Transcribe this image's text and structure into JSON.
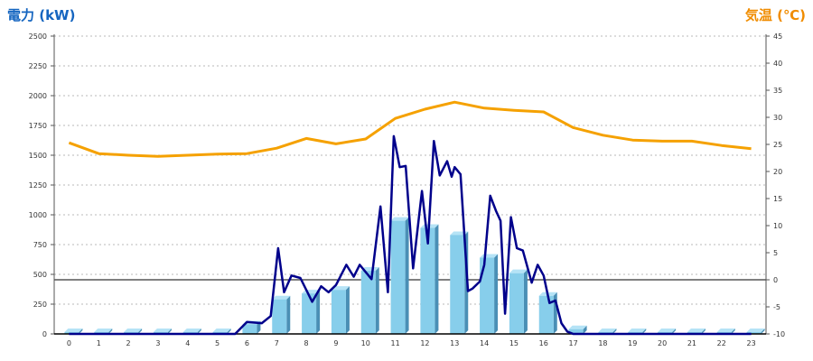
{
  "chart_data": {
    "type": "bar",
    "left_axis_title": "電力 (kW)",
    "right_axis_title": "気温 (℃)",
    "categories": [
      "0",
      "1",
      "2",
      "3",
      "4",
      "5",
      "6",
      "7",
      "8",
      "9",
      "10",
      "11",
      "12",
      "13",
      "14",
      "15",
      "16",
      "17",
      "18",
      "19",
      "20",
      "21",
      "22",
      "23"
    ],
    "ylim_left": [
      0,
      2500
    ],
    "ylim_right": [
      -10,
      45
    ],
    "left_ticks": [
      "0",
      "250",
      "500",
      "750",
      "1000",
      "1250",
      "1500",
      "1750",
      "2000",
      "2250",
      "2500"
    ],
    "right_ticks": [
      "-10",
      "-5",
      "0",
      "5",
      "10",
      "15",
      "20",
      "25",
      "30",
      "35",
      "40",
      "45"
    ],
    "grid": true,
    "series": [
      {
        "kind": "bar",
        "axis": "left",
        "color": "#87ceeb",
        "values": [
          15,
          15,
          15,
          15,
          15,
          15,
          80,
          290,
          340,
          370,
          530,
          950,
          890,
          830,
          640,
          510,
          320,
          40,
          15,
          15,
          15,
          15,
          15,
          15
        ]
      },
      {
        "kind": "line",
        "axis": "left",
        "color": "#00008b",
        "x": [
          0,
          5,
          5.6,
          6,
          6.5,
          6.8,
          7.05,
          7.25,
          7.5,
          7.8,
          8.2,
          8.5,
          8.75,
          9,
          9.35,
          9.6,
          9.8,
          10.2,
          10.5,
          10.75,
          10.95,
          11.15,
          11.35,
          11.6,
          11.9,
          12.1,
          12.3,
          12.5,
          12.75,
          12.9,
          13,
          13.2,
          13.45,
          13.6,
          13.85,
          14,
          14.2,
          14.4,
          14.55,
          14.7,
          14.9,
          15.1,
          15.3,
          15.6,
          15.8,
          16,
          16.2,
          16.4,
          16.6,
          16.8,
          17,
          17.5,
          23
        ],
        "y": [
          0,
          0,
          0,
          100,
          90,
          150,
          720,
          350,
          490,
          470,
          270,
          400,
          350,
          410,
          580,
          480,
          580,
          460,
          1070,
          350,
          1660,
          1400,
          1410,
          550,
          1200,
          760,
          1620,
          1330,
          1450,
          1320,
          1400,
          1340,
          360,
          380,
          440,
          580,
          1160,
          1030,
          950,
          170,
          980,
          720,
          700,
          430,
          580,
          490,
          260,
          280,
          90,
          20,
          0,
          0,
          0
        ]
      },
      {
        "kind": "line",
        "axis": "right",
        "color": "#f5a100",
        "values": [
          25.3,
          23.3,
          23.0,
          22.8,
          23.0,
          23.2,
          23.3,
          24.3,
          26.1,
          25.1,
          26.0,
          29.8,
          31.5,
          32.8,
          31.7,
          31.3,
          31.0,
          28.1,
          26.7,
          25.8,
          25.6,
          25.6,
          24.8,
          24.2
        ]
      }
    ]
  }
}
